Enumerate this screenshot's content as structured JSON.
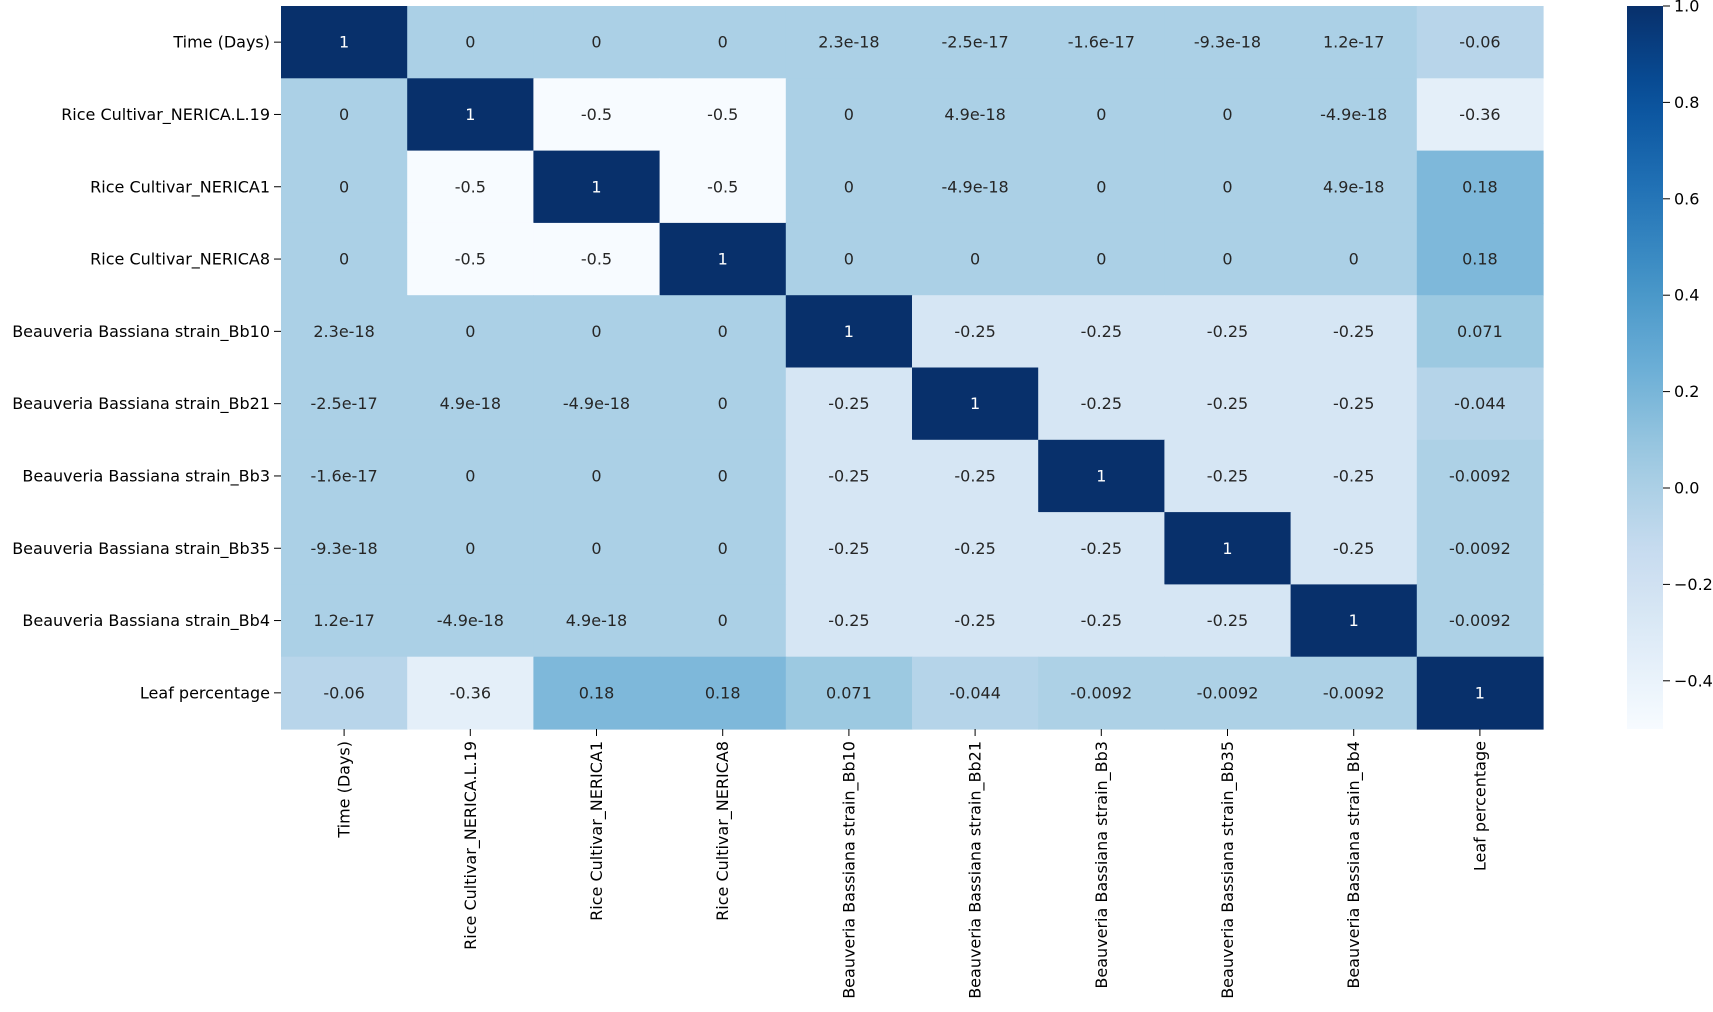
{
  "chart_data": {
    "type": "heatmap",
    "labels": [
      "Time (Days)",
      "Rice Cultivar_NERICA.L.19",
      "Rice Cultivar_NERICA1",
      "Rice Cultivar_NERICA8",
      "Beauveria Bassiana strain_Bb10",
      "Beauveria Bassiana strain_Bb21",
      "Beauveria Bassiana strain_Bb3",
      "Beauveria Bassiana strain_Bb35",
      "Beauveria Bassiana strain_Bb4",
      "Leaf percentage"
    ],
    "values": [
      [
        1,
        0,
        0,
        0,
        2.3e-18,
        -2.5e-17,
        -1.6e-17,
        -9.3e-18,
        1.2e-17,
        -0.06
      ],
      [
        0,
        1,
        -0.5,
        -0.5,
        0,
        4.9e-18,
        0,
        0,
        -4.9e-18,
        -0.36
      ],
      [
        0,
        -0.5,
        1,
        -0.5,
        0,
        -4.9e-18,
        0,
        0,
        4.9e-18,
        0.18
      ],
      [
        0,
        -0.5,
        -0.5,
        1,
        0,
        0,
        0,
        0,
        0,
        0.18
      ],
      [
        2.3e-18,
        0,
        0,
        0,
        1,
        -0.25,
        -0.25,
        -0.25,
        -0.25,
        0.071
      ],
      [
        -2.5e-17,
        4.9e-18,
        -4.9e-18,
        0,
        -0.25,
        1,
        -0.25,
        -0.25,
        -0.25,
        -0.044
      ],
      [
        -1.6e-17,
        0,
        0,
        0,
        -0.25,
        -0.25,
        1,
        -0.25,
        -0.25,
        -0.0092
      ],
      [
        -9.3e-18,
        0,
        0,
        0,
        -0.25,
        -0.25,
        -0.25,
        1,
        -0.25,
        -0.0092
      ],
      [
        1.2e-17,
        -4.9e-18,
        4.9e-18,
        0,
        -0.25,
        -0.25,
        -0.25,
        -0.25,
        1,
        -0.0092
      ],
      [
        -0.06,
        -0.36,
        0.18,
        0.18,
        0.071,
        -0.044,
        -0.0092,
        -0.0092,
        -0.0092,
        1
      ]
    ],
    "annotations": [
      [
        "1",
        "0",
        "0",
        "0",
        "2.3e-18",
        "-2.5e-17",
        "-1.6e-17",
        "-9.3e-18",
        "1.2e-17",
        "-0.06"
      ],
      [
        "0",
        "1",
        "-0.5",
        "-0.5",
        "0",
        "4.9e-18",
        "0",
        "0",
        "-4.9e-18",
        "-0.36"
      ],
      [
        "0",
        "-0.5",
        "1",
        "-0.5",
        "0",
        "-4.9e-18",
        "0",
        "0",
        "4.9e-18",
        "0.18"
      ],
      [
        "0",
        "-0.5",
        "-0.5",
        "1",
        "0",
        "0",
        "0",
        "0",
        "0",
        "0.18"
      ],
      [
        "2.3e-18",
        "0",
        "0",
        "0",
        "1",
        "-0.25",
        "-0.25",
        "-0.25",
        "-0.25",
        "0.071"
      ],
      [
        "-2.5e-17",
        "4.9e-18",
        "-4.9e-18",
        "0",
        "-0.25",
        "1",
        "-0.25",
        "-0.25",
        "-0.25",
        "-0.044"
      ],
      [
        "-1.6e-17",
        "0",
        "0",
        "0",
        "-0.25",
        "-0.25",
        "1",
        "-0.25",
        "-0.25",
        "-0.0092"
      ],
      [
        "-9.3e-18",
        "0",
        "0",
        "0",
        "-0.25",
        "-0.25",
        "-0.25",
        "1",
        "-0.25",
        "-0.0092"
      ],
      [
        "1.2e-17",
        "-4.9e-18",
        "4.9e-18",
        "0",
        "-0.25",
        "-0.25",
        "-0.25",
        "-0.25",
        "1",
        "-0.0092"
      ],
      [
        "-0.06",
        "-0.36",
        "0.18",
        "0.18",
        "0.071",
        "-0.044",
        "-0.0092",
        "-0.0092",
        "-0.0092",
        "1"
      ]
    ],
    "colorscale": "Blues",
    "vmin": -0.5,
    "vmax": 1.0,
    "colorbar_ticks": [
      1.0,
      0.8,
      0.6,
      0.4,
      0.2,
      0.0,
      -0.2,
      -0.4
    ],
    "colorbar_tick_labels": [
      "1.0",
      "0.8",
      "0.6",
      "0.4",
      "0.2",
      "0.0",
      "−0.2",
      "−0.4"
    ]
  }
}
